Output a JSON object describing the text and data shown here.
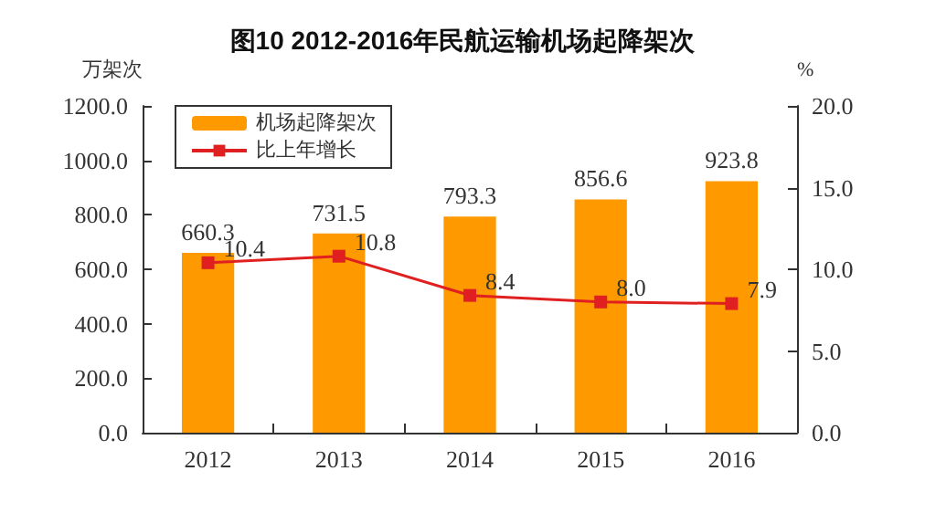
{
  "chart_data": {
    "type": "bar",
    "title": "图10 2012-2016年民航运输机场起降架次",
    "ylabel": "万架次",
    "y2label": "%",
    "categories": [
      "2012",
      "2013",
      "2014",
      "2015",
      "2016"
    ],
    "series": [
      {
        "name": "机场起降架次",
        "color": "#ff9900",
        "values": [
          660.3,
          731.5,
          793.3,
          856.6,
          923.8
        ],
        "value_labels": [
          "660.3",
          "731.5",
          "793.3",
          "856.6",
          "923.8"
        ]
      },
      {
        "name": "比上年增长",
        "type": "line",
        "axis": "y2",
        "color": "#e02020",
        "marker": "square",
        "values": [
          10.4,
          10.8,
          8.4,
          8.0,
          7.9
        ],
        "value_labels": [
          "10.4",
          "10.8",
          "8.4",
          "8.0",
          "7.9"
        ]
      }
    ],
    "ylim": [
      0,
      1200
    ],
    "yticks": [
      {
        "value": 0,
        "label": "0.0"
      },
      {
        "value": 200,
        "label": "200.0"
      },
      {
        "value": 400,
        "label": "400.0"
      },
      {
        "value": 600,
        "label": "600.0"
      },
      {
        "value": 800,
        "label": "800.0"
      },
      {
        "value": 1000,
        "label": "1000.0"
      },
      {
        "value": 1200,
        "label": "1200.0"
      }
    ],
    "y2lim": [
      0,
      20
    ],
    "y2ticks": [
      {
        "value": 0,
        "label": "0.0"
      },
      {
        "value": 5,
        "label": "5.0"
      },
      {
        "value": 10,
        "label": "10.0"
      },
      {
        "value": 15,
        "label": "15.0"
      },
      {
        "value": 20,
        "label": "20.0"
      }
    ],
    "legend": "top left",
    "grid": false
  }
}
